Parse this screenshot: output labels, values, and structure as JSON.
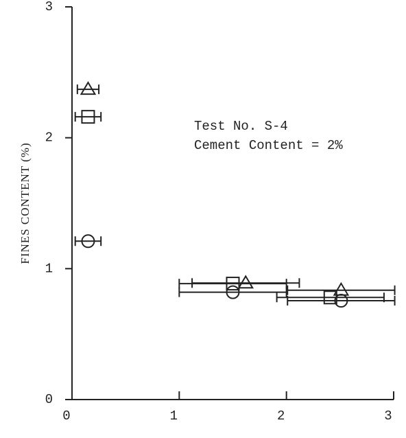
{
  "chart_data": {
    "type": "scatter",
    "ylabel": "FINES CONTENT (%)",
    "annotations": [
      "Test No. S-4",
      "Cement Content = 2%"
    ],
    "xlim": [
      0,
      3
    ],
    "xticks": [
      0,
      1,
      2,
      3
    ],
    "ylim": [
      0,
      3
    ],
    "yticks": [
      0,
      1,
      2,
      3
    ],
    "color": "#222222",
    "series": [
      {
        "marker": "triangle",
        "x": [
          0.15,
          1.62,
          2.51
        ],
        "values": [
          2.37,
          0.89,
          0.835
        ],
        "xerr": [
          0.1,
          0.5,
          0.5
        ]
      },
      {
        "marker": "square",
        "x": [
          0.15,
          1.5,
          2.41
        ],
        "values": [
          2.16,
          0.886,
          0.78
        ],
        "xerr": [
          0.12,
          0.5,
          0.5
        ]
      },
      {
        "marker": "circle",
        "x": [
          0.15,
          1.5,
          2.51
        ],
        "values": [
          1.21,
          0.82,
          0.755
        ],
        "xerr": [
          0.12,
          0.5,
          0.5
        ]
      }
    ]
  }
}
